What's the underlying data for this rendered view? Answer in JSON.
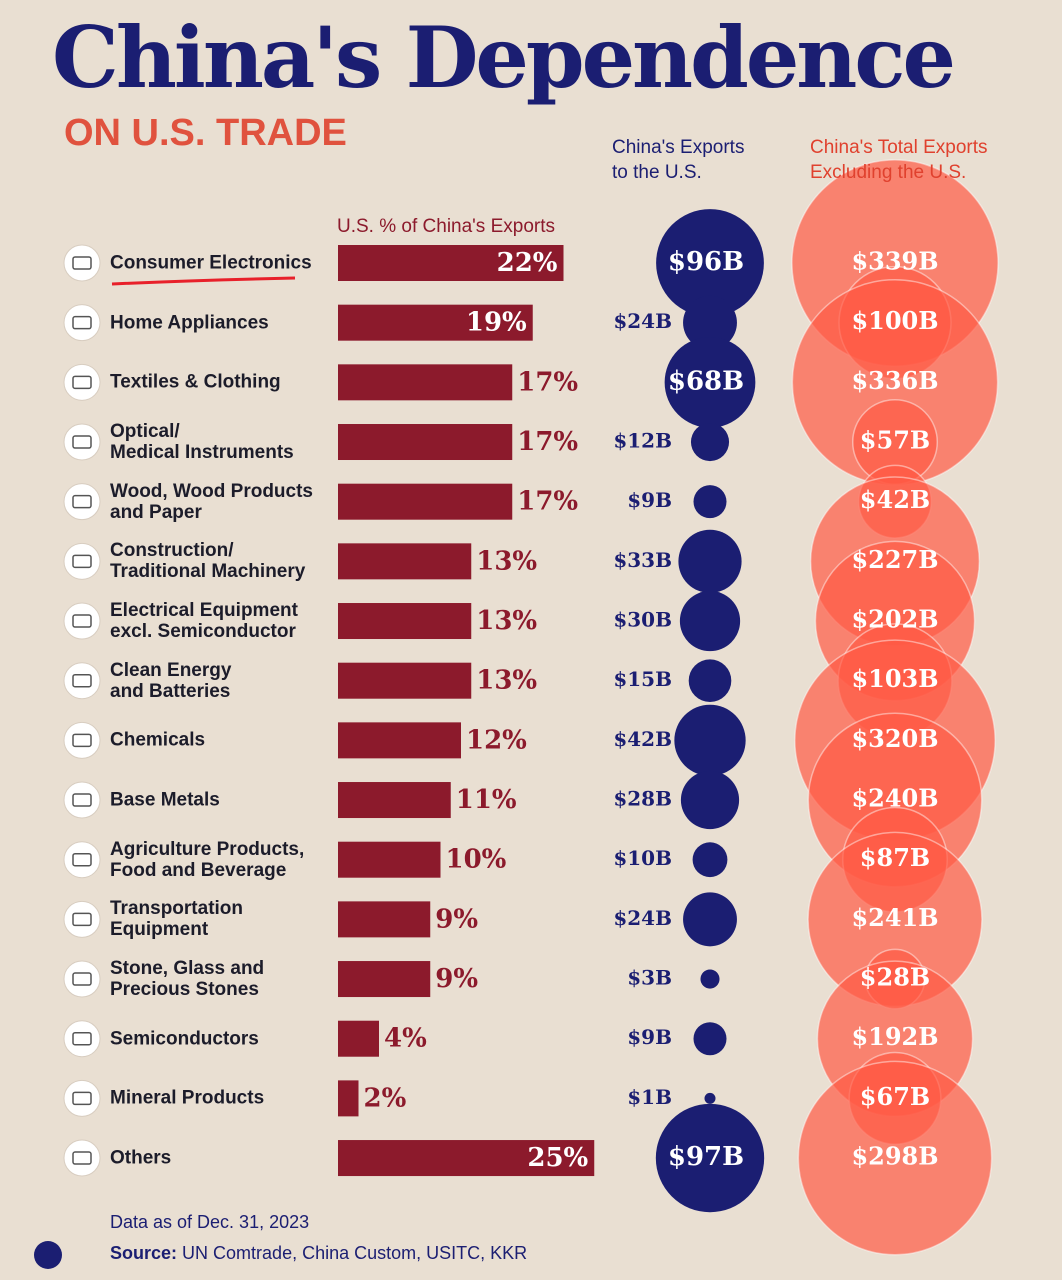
{
  "chart_data": {
    "type": "bar-bubble",
    "title": "China's Dependence",
    "subtitle": "ON U.S. TRADE",
    "categories": [
      "Consumer Electronics",
      "Home Appliances",
      "Textiles & Clothing",
      "Optical/\nMedical Instruments",
      "Wood, Wood Products\nand Paper",
      "Construction/\nTraditional Machinery",
      "Electrical Equipment\nexcl. Semiconductor",
      "Clean Energy\nand Batteries",
      "Chemicals",
      "Base Metals",
      "Agriculture Products,\nFood and Beverage",
      "Transportation\nEquipment",
      "Stone, Glass and\nPrecious Stones",
      "Semiconductors",
      "Mineral Products",
      "Others"
    ],
    "series": [
      {
        "name": "U.S. % of China's Exports",
        "color": "#8c1a2c",
        "values": [
          22,
          19,
          17,
          17,
          17,
          13,
          13,
          13,
          12,
          11,
          10,
          9,
          9,
          4,
          2,
          25
        ],
        "value_labels": [
          "22%",
          "19%",
          "17%",
          "17%",
          "17%",
          "13%",
          "13%",
          "13%",
          "12%",
          "11%",
          "10%",
          "9%",
          "9%",
          "4%",
          "2%",
          "25%"
        ]
      },
      {
        "name": "China's Exports\nto the U.S.",
        "color": "#1b1e72",
        "values": [
          96,
          24,
          68,
          12,
          9,
          33,
          30,
          15,
          42,
          28,
          10,
          24,
          3,
          9,
          1,
          97
        ],
        "value_labels": [
          "$96B",
          "$24B",
          "$68B",
          "$12B",
          "$9B",
          "$33B",
          "$30B",
          "$15B",
          "$42B",
          "$28B",
          "$10B",
          "$24B",
          "$3B",
          "$9B",
          "$1B",
          "$97B"
        ]
      },
      {
        "name": "China's Total Exports\nExcluding the U.S.",
        "color": "#ff5a45",
        "values": [
          339,
          100,
          336,
          57,
          42,
          227,
          202,
          103,
          320,
          240,
          87,
          241,
          28,
          192,
          67,
          298
        ],
        "value_labels": [
          "$339B",
          "$100B",
          "$336B",
          "$57B",
          "$42B",
          "$227B",
          "$202B",
          "$103B",
          "$320B",
          "$240B",
          "$87B",
          "$241B",
          "$28B",
          "$192B",
          "$67B",
          "$298B"
        ]
      }
    ],
    "note": "Data as of Dec. 31, 2023",
    "source_label": "Source:",
    "source": "UN Comtrade, China Custom, USITC, KKR"
  }
}
